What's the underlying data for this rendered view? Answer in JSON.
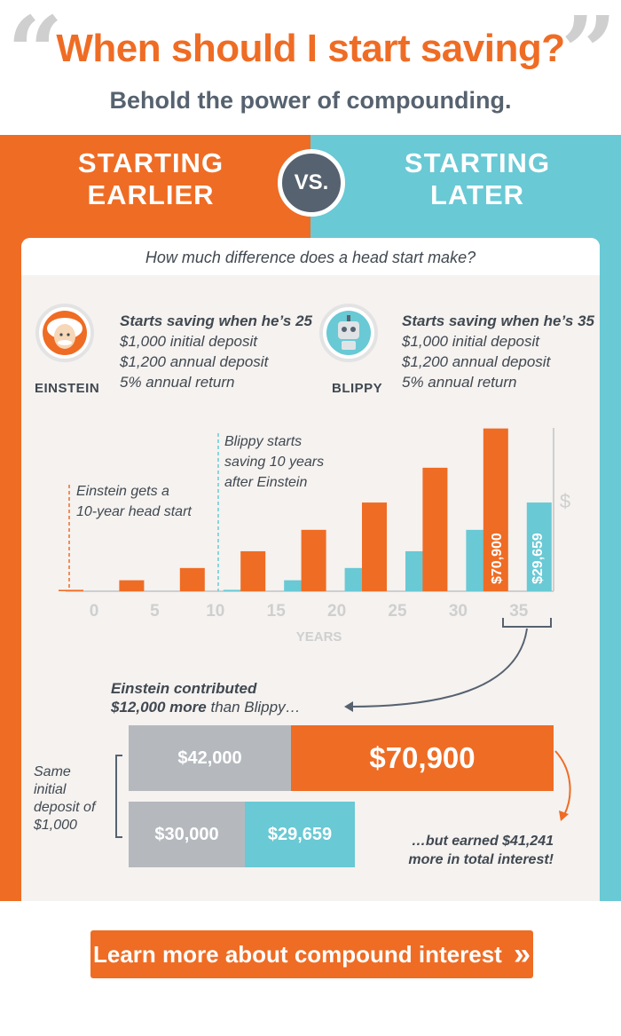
{
  "header": {
    "title": "When should I start saving?",
    "subtitle": "Behold the power of compounding.",
    "open_quote": "“",
    "close_quote": "”"
  },
  "comparison": {
    "left_line1": "STARTING",
    "left_line2": "EARLIER",
    "vs_label": "VS.",
    "right_line1": "STARTING",
    "right_line2": "LATER"
  },
  "question": "How much difference does a head start make?",
  "people": [
    {
      "name": "EINSTEIN",
      "lead": "Starts saving when he’s 25",
      "initial": "$1,000 initial deposit",
      "annual": "$1,200 annual deposit",
      "return": "5% annual return"
    },
    {
      "name": "BLIPPY",
      "lead": "Starts saving when he’s 35",
      "initial": "$1,000 initial deposit",
      "annual": "$1,200 annual deposit",
      "return": "5% annual return"
    }
  ],
  "annotations": {
    "einstein": [
      "Einstein gets a",
      "10-year head start"
    ],
    "blippy": [
      "Blippy starts",
      "saving 10 years",
      "after Einstein"
    ]
  },
  "chart_data": [
    {
      "type": "bar",
      "categories": [
        "0",
        "5",
        "10",
        "15",
        "20",
        "25",
        "30",
        "35"
      ],
      "series": [
        {
          "values": [
            1000,
            7800,
            16500,
            28400,
            43600,
            63000,
            87700,
            115600
          ]
        },
        {
          "values": [
            0,
            0,
            1000,
            7800,
            16500,
            28400,
            43600,
            63000
          ]
        }
      ],
      "data_labels": [
        "$70,900",
        "$29,659"
      ],
      "xlabel": "YEARS",
      "ylabel": "$",
      "ylim": [
        0,
        116000
      ],
      "colors": {
        "einstein": "#ef6c24",
        "blippy": "#69c9d4",
        "axis": "#cfcfcf"
      }
    },
    {
      "type": "bar",
      "orientation": "horizontal-stacked",
      "rows": [
        {
          "contributed": 42000,
          "interest": 70900,
          "contributed_label": "$42,000",
          "interest_label": "$70,900"
        },
        {
          "contributed": 30000,
          "interest": 29659,
          "contributed_label": "$30,000",
          "interest_label": "$29,659"
        }
      ],
      "colors": {
        "contributed": "#b5b9be",
        "einstein_interest": "#ef6c24",
        "blippy_interest": "#69c9d4"
      }
    }
  ],
  "summary": {
    "contributed_line1": "Einstein contributed",
    "contributed_bold": "$12,000 more",
    "contributed_rest": " than Blippy…",
    "same_deposit": [
      "Same",
      "initial",
      "deposit of",
      "$1,000"
    ],
    "earned_line1": "…but earned $41,241",
    "earned_line2": "more in total interest!"
  },
  "cta": {
    "label": "Learn more about compound interest",
    "arrow": "»"
  }
}
